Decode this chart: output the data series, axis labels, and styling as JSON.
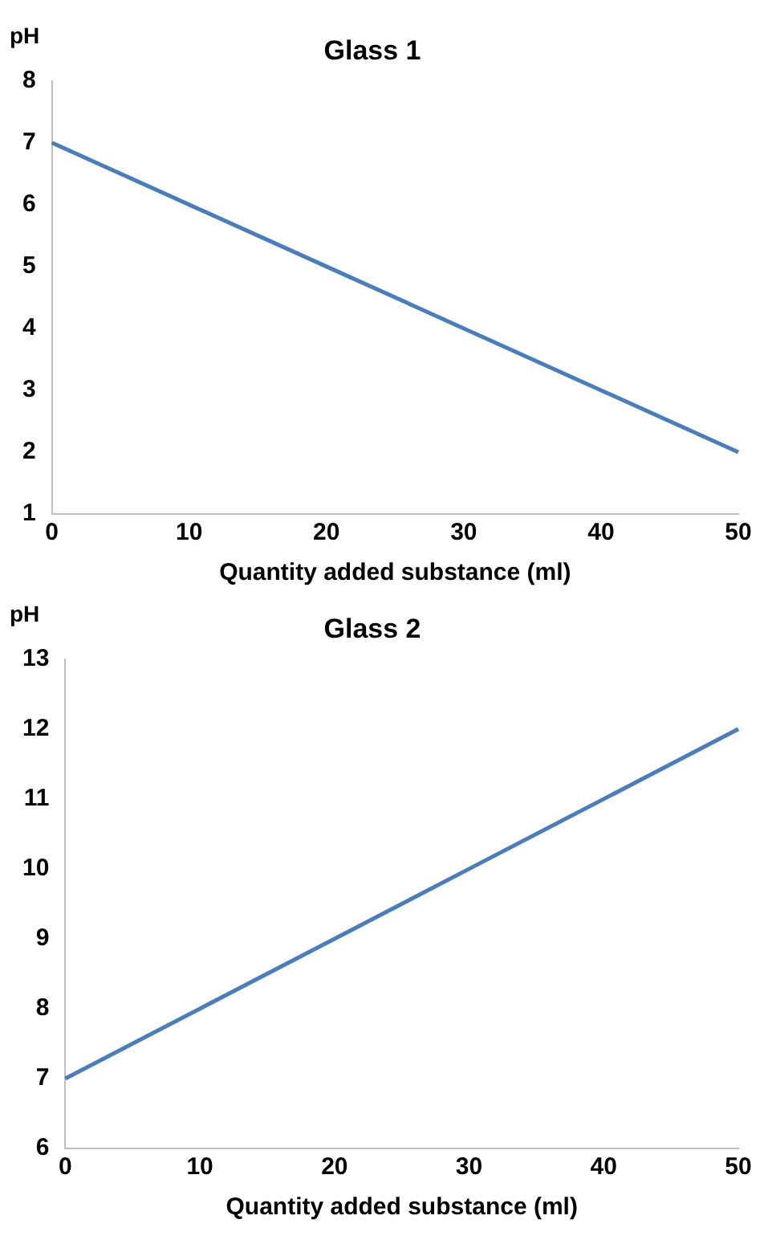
{
  "chart_data": [
    {
      "type": "line",
      "title": "Glass 1",
      "xlabel": "Quantity added substance (ml)",
      "ylabel": "pH",
      "x": [
        0,
        10,
        20,
        30,
        40,
        50
      ],
      "series": [
        {
          "color": "#4a7ebb",
          "values": [
            7,
            6,
            5,
            4,
            3,
            2
          ]
        }
      ],
      "xlim": [
        0,
        50
      ],
      "xticks": [
        0,
        10,
        20,
        30,
        40,
        50
      ],
      "ylim": [
        1,
        8
      ],
      "yticks": [
        1,
        2,
        3,
        4,
        5,
        6,
        7,
        8
      ],
      "grid": false,
      "legend": false,
      "marker": "none",
      "line_style": "solid"
    },
    {
      "type": "line",
      "title": "Glass 2",
      "xlabel": "Quantity added substance (ml)",
      "ylabel": "pH",
      "x": [
        0,
        10,
        20,
        30,
        40,
        50
      ],
      "series": [
        {
          "color": "#4a7ebb",
          "values": [
            7,
            8,
            9,
            10,
            11,
            12
          ]
        }
      ],
      "xlim": [
        0,
        50
      ],
      "xticks": [
        0,
        10,
        20,
        30,
        40,
        50
      ],
      "ylim": [
        6,
        13
      ],
      "yticks": [
        6,
        7,
        8,
        9,
        10,
        11,
        12,
        13
      ],
      "grid": false,
      "legend": false,
      "marker": "none",
      "line_style": "solid"
    }
  ]
}
